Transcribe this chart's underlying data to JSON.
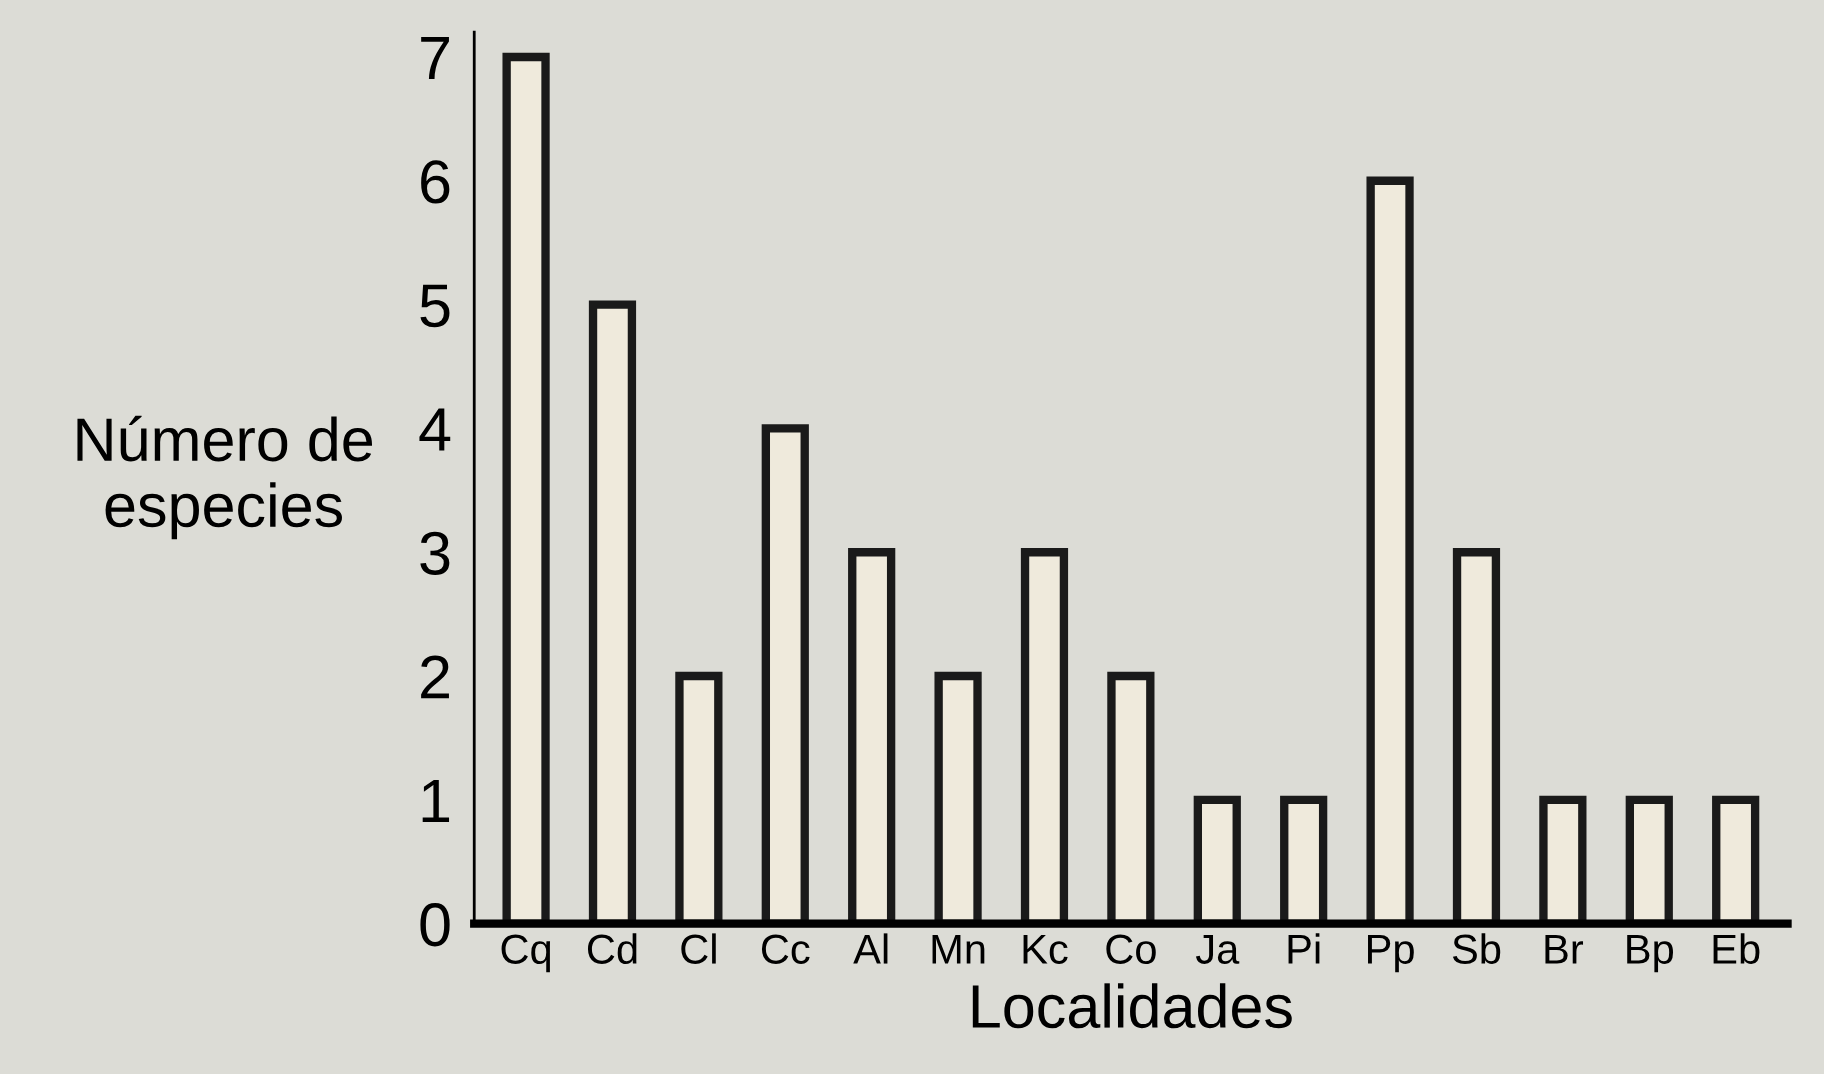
{
  "chart_data": {
    "type": "bar",
    "xlabel": "Localidades",
    "ylabel": "Número de\nespecies",
    "categories": [
      "Cq",
      "Cd",
      "Cl",
      "Cc",
      "Al",
      "Mn",
      "Kc",
      "Co",
      "Ja",
      "Pi",
      "Pp",
      "Sb",
      "Br",
      "Bp",
      "Eb"
    ],
    "values": [
      7,
      5,
      2,
      4,
      3,
      2,
      3,
      2,
      1,
      1,
      6,
      3,
      1,
      1,
      1
    ],
    "color": "#efeadc",
    "ylim": [
      0,
      7.2
    ],
    "yticks": [
      0,
      1,
      2,
      3,
      4,
      5,
      6,
      7
    ],
    "grid": false,
    "legend": false
  }
}
